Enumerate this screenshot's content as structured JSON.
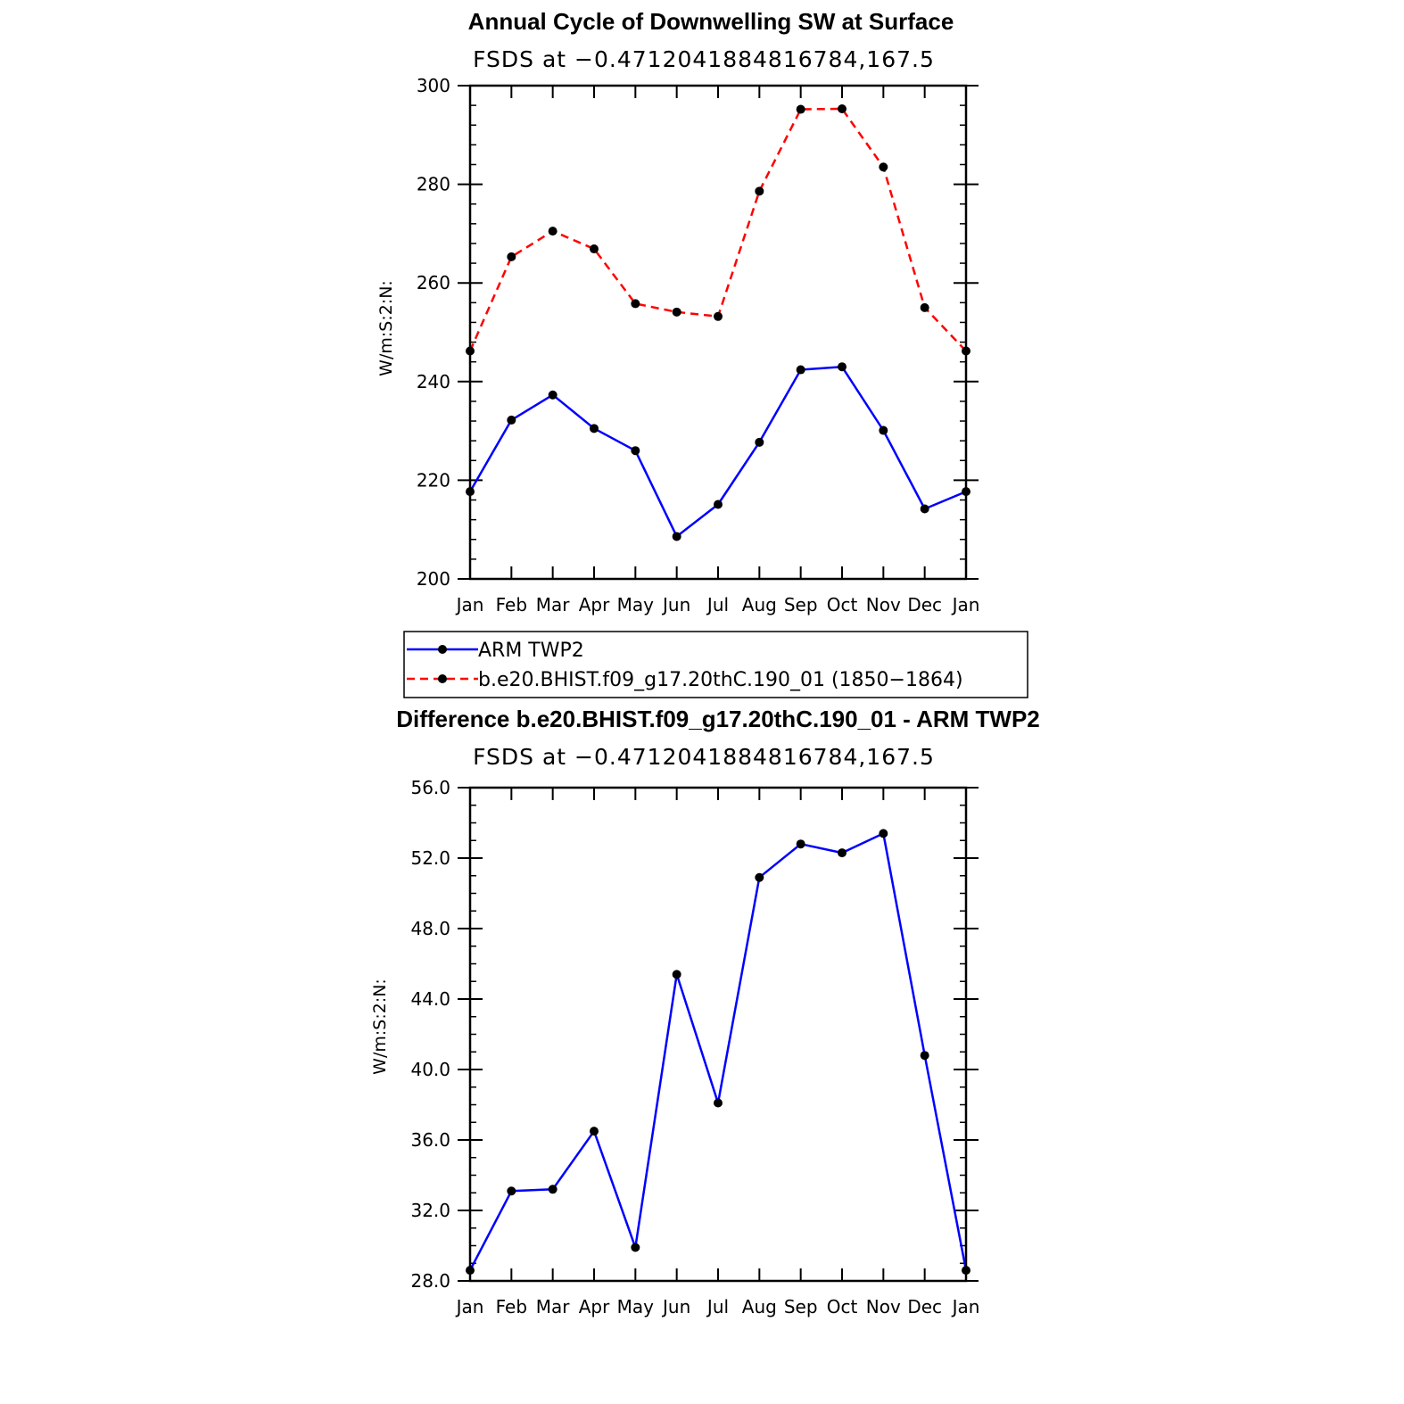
{
  "chart_data": [
    {
      "type": "line",
      "title": "Annual Cycle of Downwelling SW at Surface",
      "subtitle": "FSDS at −0.4712041884816784,167.5",
      "ylabel": "W/m:S:2:N:",
      "xlabel": "",
      "categories": [
        "Jan",
        "Feb",
        "Mar",
        "Apr",
        "May",
        "Jun",
        "Jul",
        "Aug",
        "Sep",
        "Oct",
        "Nov",
        "Dec",
        "Jan"
      ],
      "ylim": [
        200,
        300
      ],
      "yticks": [
        "200",
        "220",
        "240",
        "260",
        "280",
        "300"
      ],
      "series": [
        {
          "name": "ARM TWP2",
          "color": "#0000ff",
          "dashed": false,
          "values": [
            217.7,
            232.2,
            237.3,
            230.5,
            226.0,
            208.6,
            215.1,
            227.7,
            242.4,
            243.0,
            230.1,
            214.2,
            217.7
          ]
        },
        {
          "name": "b.e20.BHIST.f09_g17.20thC.190_01 (1850−1864)",
          "color": "#ff0000",
          "dashed": true,
          "values": [
            246.2,
            265.3,
            270.5,
            266.9,
            255.8,
            254.1,
            253.2,
            278.6,
            295.2,
            295.3,
            283.5,
            255.0,
            246.2
          ]
        }
      ],
      "legend_position": "bottom"
    },
    {
      "type": "line",
      "title": "Difference b.e20.BHIST.f09_g17.20thC.190_01 - ARM TWP2",
      "subtitle": "FSDS at −0.4712041884816784,167.5",
      "ylabel": "W/m:S:2:N:",
      "xlabel": "",
      "categories": [
        "Jan",
        "Feb",
        "Mar",
        "Apr",
        "May",
        "Jun",
        "Jul",
        "Aug",
        "Sep",
        "Oct",
        "Nov",
        "Dec",
        "Jan"
      ],
      "ylim": [
        28,
        56
      ],
      "yticks": [
        "28.0",
        "32.0",
        "36.0",
        "40.0",
        "44.0",
        "48.0",
        "52.0",
        "56.0"
      ],
      "series": [
        {
          "color": "#0000ff",
          "dashed": false,
          "values": [
            28.6,
            33.1,
            33.2,
            36.5,
            29.9,
            45.4,
            38.1,
            50.9,
            52.8,
            52.3,
            53.4,
            40.8,
            28.6
          ]
        }
      ]
    }
  ]
}
